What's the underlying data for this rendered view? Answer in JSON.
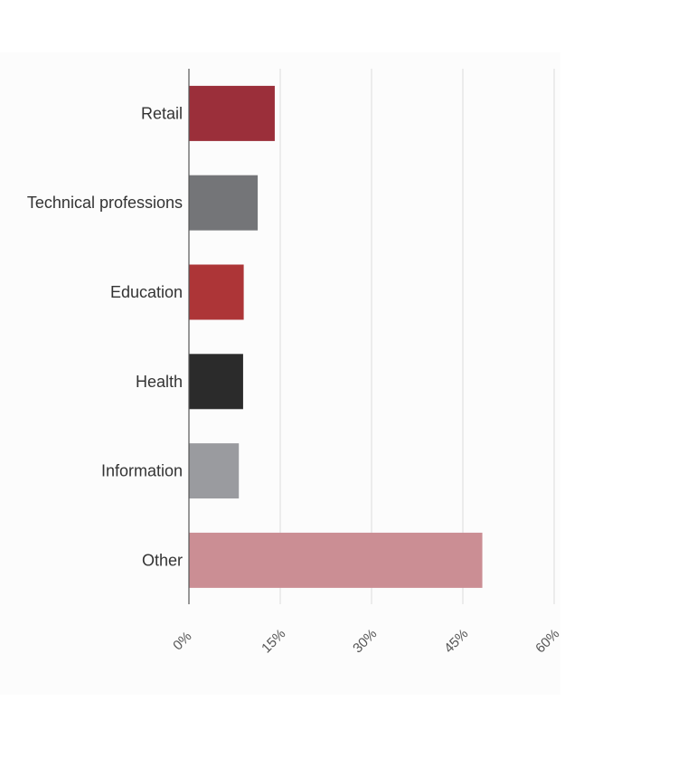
{
  "chart_data": {
    "type": "bar",
    "orientation": "horizontal",
    "categories": [
      "Retail",
      "Technical professions",
      "Education",
      "Health",
      "Information",
      "Other"
    ],
    "values": [
      14.1,
      11.3,
      9.0,
      8.9,
      8.2,
      48.2
    ],
    "colors": [
      "#9b2f3a",
      "#747578",
      "#ad3537",
      "#2b2b2b",
      "#9a9b9f",
      "#cb8e94"
    ],
    "xlim": [
      0,
      60
    ],
    "xticks": [
      0,
      15,
      30,
      45,
      60
    ],
    "xtick_suffix": "%",
    "grid": true,
    "title": "",
    "xlabel": "",
    "ylabel": ""
  }
}
